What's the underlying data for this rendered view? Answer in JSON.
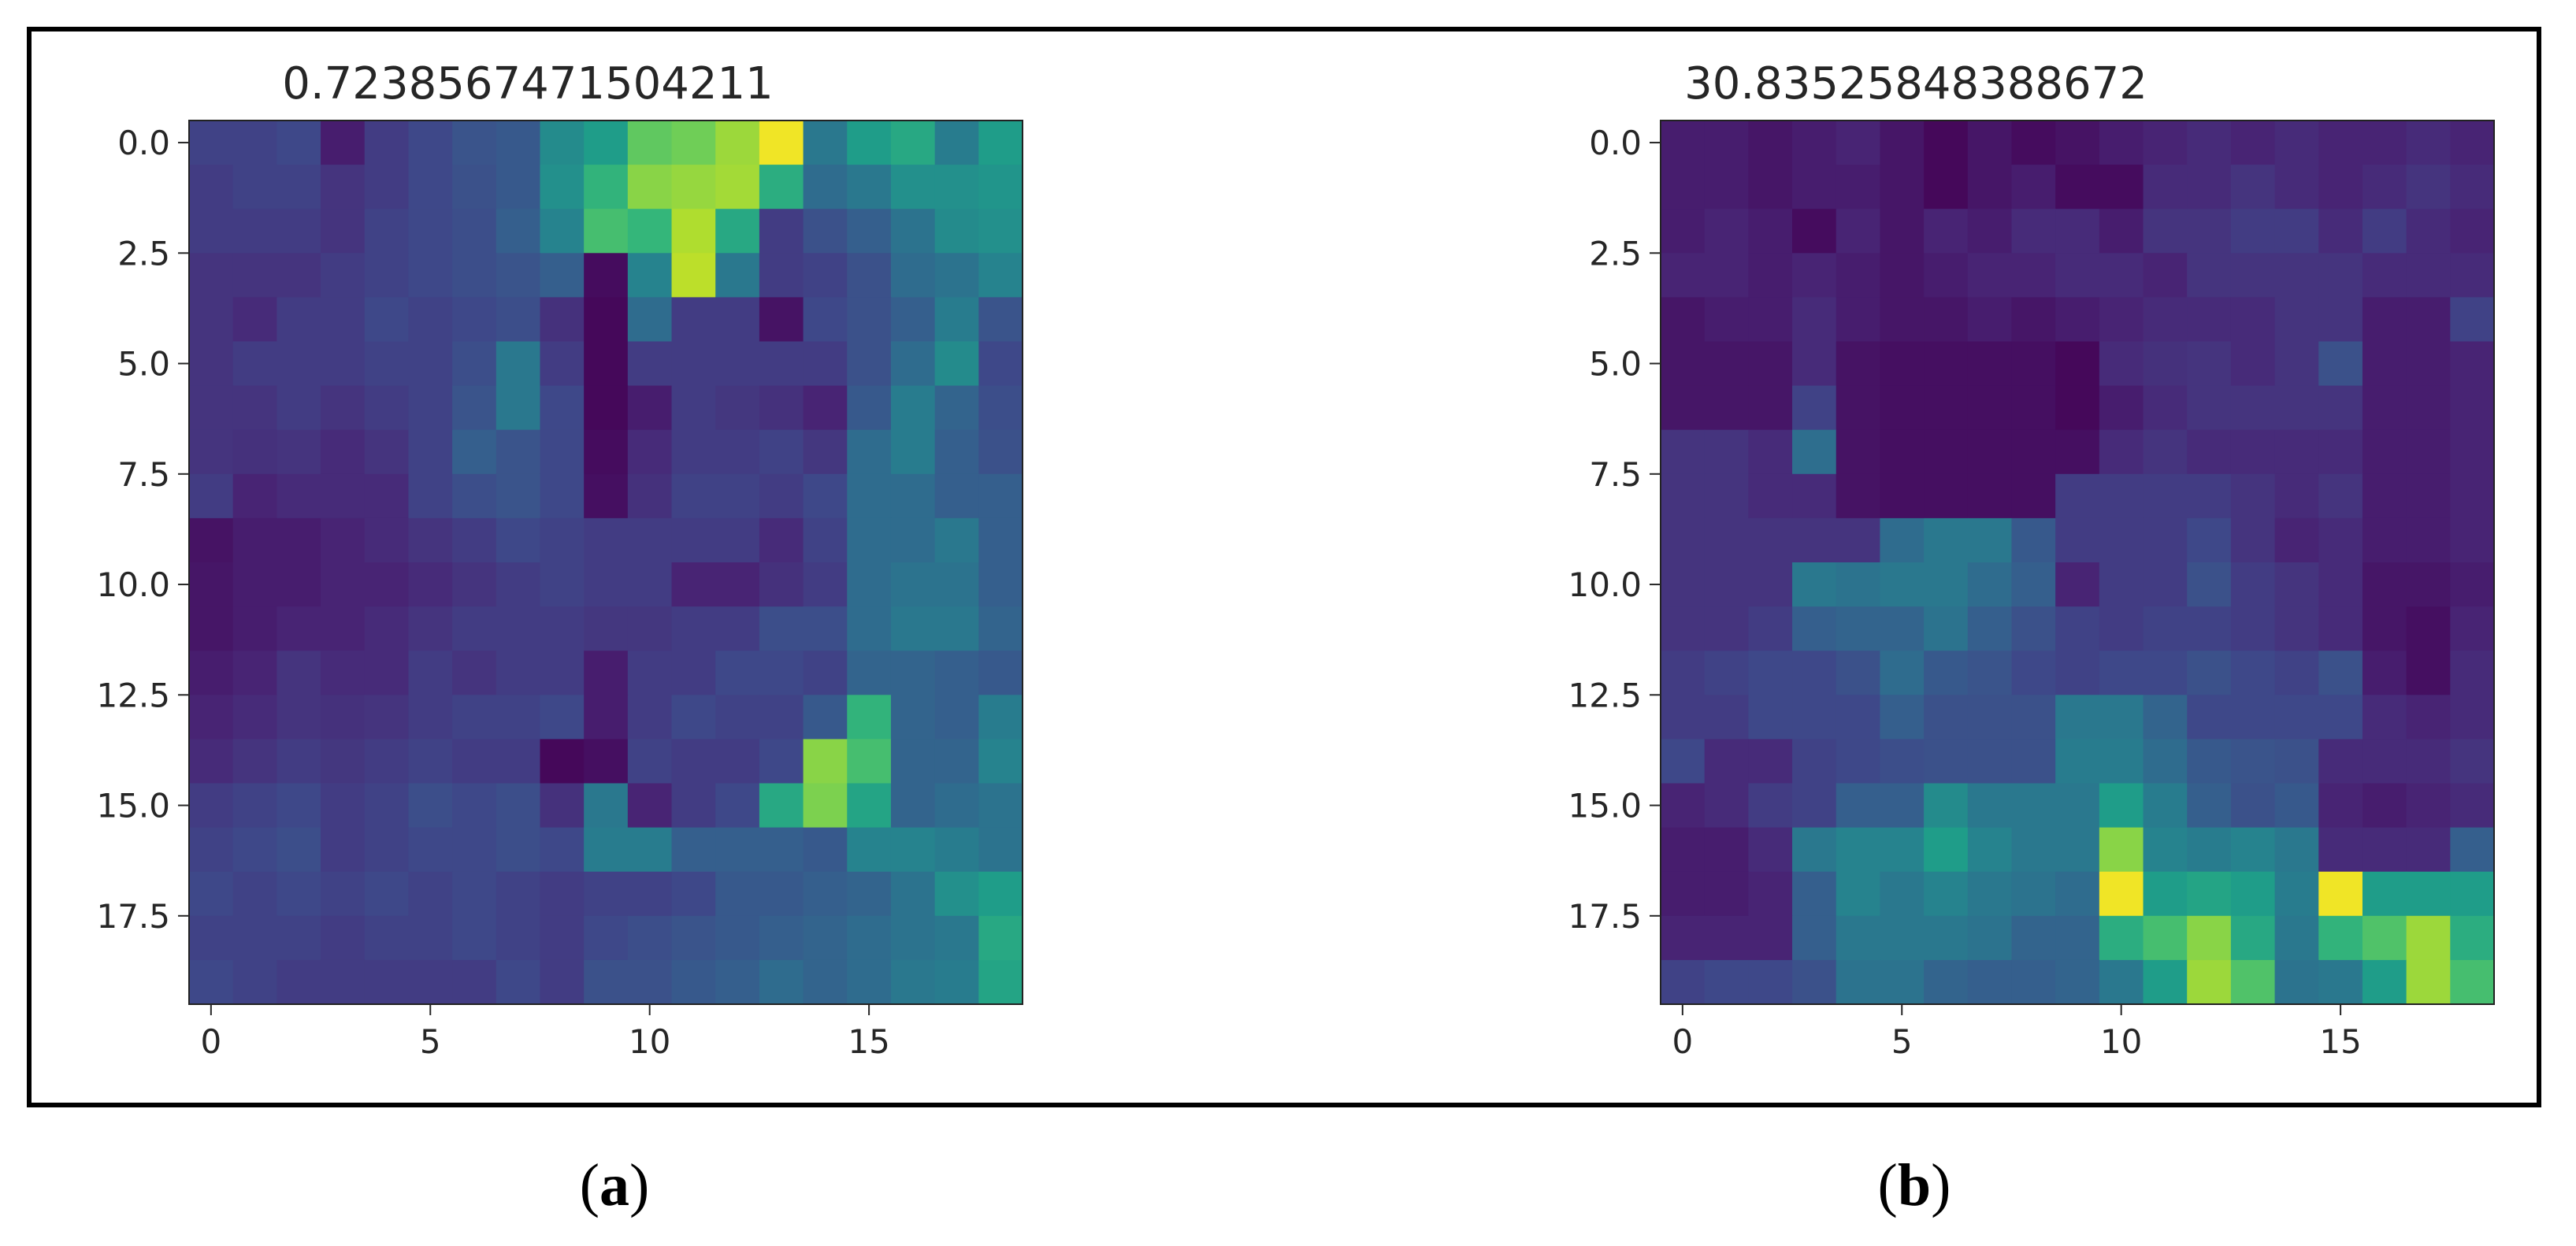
{
  "colors": {
    "cmap": [
      "#440154",
      "#482878",
      "#3e4989",
      "#31688e",
      "#26828e",
      "#1f9e89",
      "#35b779",
      "#6ece58",
      "#b5de2b",
      "#fde725"
    ],
    "frame": "#000000",
    "text": "#262626"
  },
  "chart_data": [
    {
      "type": "heatmap",
      "title": "0.7238567471504211",
      "caption_letter": "a",
      "xticks": [
        0,
        5,
        10,
        15
      ],
      "yticks": [
        0.0,
        2.5,
        5.0,
        7.5,
        10.0,
        12.5,
        15.0,
        17.5
      ],
      "ytick_labels": [
        "0.0",
        "2.5",
        "5.0",
        "7.5",
        "10.0",
        "12.5",
        "15.0",
        "17.5"
      ],
      "xlim": [
        -0.5,
        18.5
      ],
      "ylim": [
        19.5,
        -0.5
      ],
      "values": [
        [
          0.2,
          0.2,
          0.22,
          0.08,
          0.18,
          0.22,
          0.26,
          0.28,
          0.48,
          0.55,
          0.75,
          0.78,
          0.85,
          0.98,
          0.4,
          0.55,
          0.6,
          0.42,
          0.55
        ],
        [
          0.18,
          0.2,
          0.2,
          0.15,
          0.18,
          0.22,
          0.25,
          0.28,
          0.5,
          0.65,
          0.82,
          0.84,
          0.86,
          0.62,
          0.35,
          0.4,
          0.5,
          0.5,
          0.52
        ],
        [
          0.18,
          0.18,
          0.18,
          0.15,
          0.2,
          0.22,
          0.24,
          0.3,
          0.45,
          0.7,
          0.66,
          0.88,
          0.6,
          0.18,
          0.25,
          0.3,
          0.38,
          0.48,
          0.5
        ],
        [
          0.15,
          0.15,
          0.15,
          0.18,
          0.2,
          0.22,
          0.24,
          0.26,
          0.3,
          0.03,
          0.45,
          0.9,
          0.4,
          0.18,
          0.2,
          0.25,
          0.35,
          0.38,
          0.45
        ],
        [
          0.15,
          0.12,
          0.18,
          0.18,
          0.22,
          0.2,
          0.22,
          0.24,
          0.14,
          0.02,
          0.35,
          0.18,
          0.18,
          0.05,
          0.22,
          0.25,
          0.3,
          0.42,
          0.26
        ],
        [
          0.15,
          0.18,
          0.18,
          0.18,
          0.2,
          0.2,
          0.24,
          0.4,
          0.18,
          0.02,
          0.18,
          0.18,
          0.18,
          0.18,
          0.18,
          0.25,
          0.35,
          0.48,
          0.22
        ],
        [
          0.15,
          0.15,
          0.18,
          0.15,
          0.18,
          0.2,
          0.26,
          0.4,
          0.22,
          0.02,
          0.08,
          0.18,
          0.16,
          0.14,
          0.1,
          0.28,
          0.42,
          0.32,
          0.24
        ],
        [
          0.15,
          0.14,
          0.15,
          0.12,
          0.15,
          0.2,
          0.3,
          0.26,
          0.22,
          0.03,
          0.12,
          0.18,
          0.18,
          0.2,
          0.16,
          0.35,
          0.42,
          0.3,
          0.25
        ],
        [
          0.18,
          0.1,
          0.12,
          0.12,
          0.12,
          0.2,
          0.24,
          0.26,
          0.22,
          0.04,
          0.14,
          0.2,
          0.2,
          0.18,
          0.22,
          0.35,
          0.35,
          0.3,
          0.3
        ],
        [
          0.05,
          0.08,
          0.08,
          0.1,
          0.12,
          0.15,
          0.18,
          0.22,
          0.2,
          0.18,
          0.18,
          0.18,
          0.18,
          0.12,
          0.2,
          0.35,
          0.35,
          0.4,
          0.3
        ],
        [
          0.06,
          0.08,
          0.08,
          0.1,
          0.1,
          0.12,
          0.15,
          0.18,
          0.2,
          0.18,
          0.18,
          0.1,
          0.1,
          0.14,
          0.18,
          0.35,
          0.38,
          0.38,
          0.3
        ],
        [
          0.06,
          0.08,
          0.1,
          0.1,
          0.12,
          0.15,
          0.18,
          0.18,
          0.18,
          0.16,
          0.16,
          0.18,
          0.18,
          0.24,
          0.24,
          0.35,
          0.4,
          0.4,
          0.32
        ],
        [
          0.08,
          0.1,
          0.15,
          0.12,
          0.12,
          0.18,
          0.15,
          0.18,
          0.18,
          0.08,
          0.18,
          0.18,
          0.22,
          0.22,
          0.2,
          0.32,
          0.32,
          0.3,
          0.28
        ],
        [
          0.1,
          0.12,
          0.15,
          0.14,
          0.15,
          0.18,
          0.2,
          0.2,
          0.22,
          0.08,
          0.18,
          0.22,
          0.2,
          0.2,
          0.28,
          0.65,
          0.32,
          0.3,
          0.42
        ],
        [
          0.12,
          0.15,
          0.18,
          0.16,
          0.18,
          0.2,
          0.18,
          0.18,
          0.02,
          0.04,
          0.2,
          0.18,
          0.18,
          0.22,
          0.82,
          0.7,
          0.32,
          0.32,
          0.45
        ],
        [
          0.18,
          0.2,
          0.22,
          0.18,
          0.2,
          0.24,
          0.22,
          0.24,
          0.14,
          0.4,
          0.1,
          0.18,
          0.22,
          0.6,
          0.8,
          0.58,
          0.32,
          0.35,
          0.38
        ],
        [
          0.2,
          0.22,
          0.24,
          0.18,
          0.2,
          0.22,
          0.22,
          0.24,
          0.22,
          0.42,
          0.42,
          0.3,
          0.3,
          0.3,
          0.28,
          0.45,
          0.45,
          0.42,
          0.38
        ],
        [
          0.22,
          0.2,
          0.22,
          0.2,
          0.22,
          0.2,
          0.22,
          0.2,
          0.18,
          0.2,
          0.2,
          0.22,
          0.28,
          0.28,
          0.3,
          0.32,
          0.38,
          0.5,
          0.55
        ],
        [
          0.2,
          0.2,
          0.2,
          0.18,
          0.2,
          0.2,
          0.22,
          0.2,
          0.18,
          0.22,
          0.24,
          0.26,
          0.28,
          0.3,
          0.32,
          0.35,
          0.38,
          0.4,
          0.6
        ],
        [
          0.22,
          0.2,
          0.18,
          0.18,
          0.18,
          0.18,
          0.18,
          0.22,
          0.18,
          0.25,
          0.25,
          0.28,
          0.3,
          0.35,
          0.32,
          0.35,
          0.4,
          0.42,
          0.58
        ]
      ]
    },
    {
      "type": "heatmap",
      "title": "30.83525848388672",
      "caption_letter": "b",
      "xticks": [
        0,
        5,
        10,
        15
      ],
      "yticks": [
        0.0,
        2.5,
        5.0,
        7.5,
        10.0,
        12.5,
        15.0,
        17.5
      ],
      "ytick_labels": [
        "0.0",
        "2.5",
        "5.0",
        "7.5",
        "10.0",
        "12.5",
        "15.0",
        "17.5"
      ],
      "xlim": [
        -0.5,
        18.5
      ],
      "ylim": [
        19.5,
        -0.5
      ],
      "values": [
        [
          0.08,
          0.08,
          0.06,
          0.08,
          0.1,
          0.06,
          0.02,
          0.06,
          0.03,
          0.05,
          0.08,
          0.1,
          0.12,
          0.1,
          0.12,
          0.1,
          0.1,
          0.12,
          0.1
        ],
        [
          0.08,
          0.08,
          0.06,
          0.08,
          0.08,
          0.06,
          0.02,
          0.06,
          0.08,
          0.03,
          0.03,
          0.12,
          0.12,
          0.15,
          0.12,
          0.1,
          0.12,
          0.15,
          0.12
        ],
        [
          0.08,
          0.1,
          0.08,
          0.03,
          0.1,
          0.06,
          0.1,
          0.08,
          0.12,
          0.12,
          0.08,
          0.15,
          0.15,
          0.18,
          0.18,
          0.12,
          0.18,
          0.12,
          0.1
        ],
        [
          0.1,
          0.1,
          0.08,
          0.1,
          0.08,
          0.06,
          0.08,
          0.1,
          0.1,
          0.12,
          0.12,
          0.1,
          0.15,
          0.15,
          0.15,
          0.15,
          0.12,
          0.12,
          0.12
        ],
        [
          0.06,
          0.08,
          0.08,
          0.12,
          0.08,
          0.06,
          0.06,
          0.08,
          0.06,
          0.08,
          0.1,
          0.12,
          0.12,
          0.12,
          0.15,
          0.15,
          0.08,
          0.08,
          0.2
        ],
        [
          0.06,
          0.06,
          0.06,
          0.12,
          0.05,
          0.04,
          0.04,
          0.04,
          0.04,
          0.02,
          0.12,
          0.14,
          0.15,
          0.12,
          0.15,
          0.25,
          0.08,
          0.08,
          0.1
        ],
        [
          0.06,
          0.06,
          0.06,
          0.2,
          0.05,
          0.04,
          0.04,
          0.04,
          0.04,
          0.02,
          0.08,
          0.12,
          0.15,
          0.15,
          0.15,
          0.15,
          0.08,
          0.08,
          0.1
        ],
        [
          0.15,
          0.15,
          0.12,
          0.36,
          0.05,
          0.04,
          0.04,
          0.04,
          0.04,
          0.04,
          0.12,
          0.15,
          0.12,
          0.12,
          0.12,
          0.12,
          0.08,
          0.08,
          0.1
        ],
        [
          0.15,
          0.15,
          0.12,
          0.12,
          0.05,
          0.04,
          0.04,
          0.04,
          0.04,
          0.18,
          0.18,
          0.18,
          0.18,
          0.15,
          0.12,
          0.15,
          0.08,
          0.08,
          0.1
        ],
        [
          0.15,
          0.15,
          0.15,
          0.15,
          0.15,
          0.35,
          0.4,
          0.4,
          0.28,
          0.18,
          0.18,
          0.18,
          0.22,
          0.15,
          0.1,
          0.12,
          0.08,
          0.08,
          0.1
        ],
        [
          0.15,
          0.15,
          0.15,
          0.4,
          0.38,
          0.4,
          0.4,
          0.35,
          0.3,
          0.1,
          0.18,
          0.18,
          0.25,
          0.18,
          0.15,
          0.12,
          0.06,
          0.06,
          0.08
        ],
        [
          0.15,
          0.15,
          0.18,
          0.3,
          0.32,
          0.32,
          0.38,
          0.3,
          0.25,
          0.2,
          0.18,
          0.2,
          0.2,
          0.18,
          0.15,
          0.12,
          0.06,
          0.04,
          0.1
        ],
        [
          0.18,
          0.2,
          0.22,
          0.22,
          0.25,
          0.35,
          0.28,
          0.26,
          0.22,
          0.2,
          0.22,
          0.22,
          0.25,
          0.22,
          0.2,
          0.25,
          0.08,
          0.04,
          0.12
        ],
        [
          0.18,
          0.18,
          0.22,
          0.22,
          0.22,
          0.3,
          0.25,
          0.25,
          0.25,
          0.4,
          0.4,
          0.32,
          0.22,
          0.22,
          0.22,
          0.22,
          0.12,
          0.1,
          0.12
        ],
        [
          0.22,
          0.12,
          0.12,
          0.2,
          0.22,
          0.24,
          0.25,
          0.25,
          0.25,
          0.42,
          0.42,
          0.35,
          0.28,
          0.26,
          0.25,
          0.12,
          0.12,
          0.12,
          0.15
        ],
        [
          0.1,
          0.12,
          0.18,
          0.2,
          0.3,
          0.3,
          0.48,
          0.4,
          0.4,
          0.4,
          0.55,
          0.42,
          0.3,
          0.25,
          0.28,
          0.1,
          0.08,
          0.1,
          0.12
        ],
        [
          0.08,
          0.08,
          0.12,
          0.4,
          0.45,
          0.45,
          0.55,
          0.45,
          0.4,
          0.4,
          0.82,
          0.45,
          0.42,
          0.45,
          0.4,
          0.12,
          0.12,
          0.12,
          0.3
        ],
        [
          0.08,
          0.08,
          0.1,
          0.3,
          0.45,
          0.4,
          0.45,
          0.4,
          0.38,
          0.35,
          0.98,
          0.55,
          0.58,
          0.55,
          0.42,
          0.98,
          0.55,
          0.55,
          0.55
        ],
        [
          0.1,
          0.1,
          0.1,
          0.3,
          0.4,
          0.4,
          0.4,
          0.38,
          0.32,
          0.32,
          0.62,
          0.7,
          0.82,
          0.6,
          0.4,
          0.65,
          0.72,
          0.85,
          0.62
        ],
        [
          0.2,
          0.22,
          0.22,
          0.25,
          0.38,
          0.38,
          0.32,
          0.3,
          0.3,
          0.32,
          0.4,
          0.55,
          0.85,
          0.72,
          0.38,
          0.4,
          0.55,
          0.85,
          0.7
        ]
      ]
    }
  ]
}
